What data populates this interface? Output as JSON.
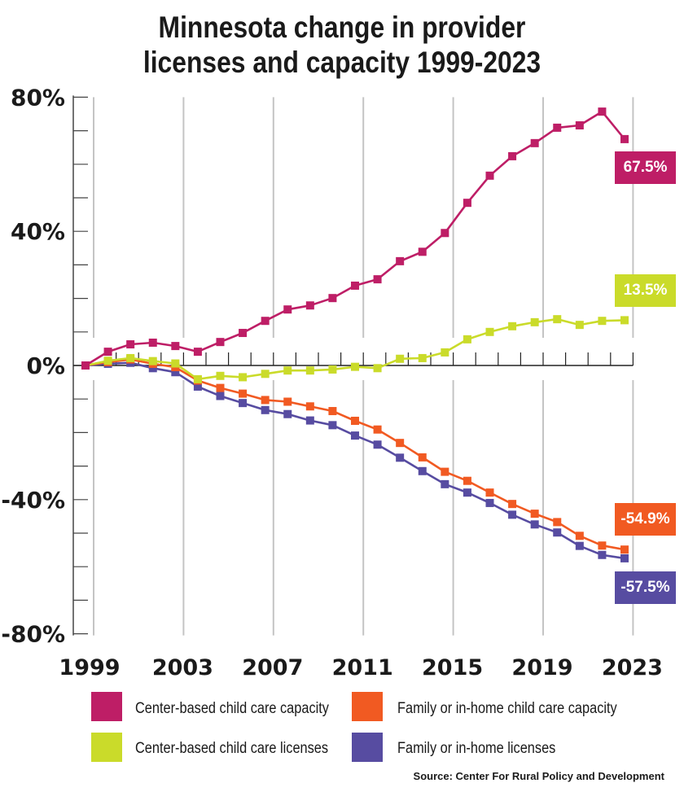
{
  "chart_data": {
    "type": "line",
    "title": "Minnesota change in provider licenses and capacity 1999-2023",
    "title_lines": [
      "Minnesota change in provider",
      "licenses and capacity 1999-2023"
    ],
    "x": [
      1999,
      2000,
      2001,
      2002,
      2003,
      2004,
      2005,
      2006,
      2007,
      2008,
      2009,
      2010,
      2011,
      2012,
      2013,
      2014,
      2015,
      2016,
      2017,
      2018,
      2019,
      2020,
      2021,
      2022,
      2023
    ],
    "x_ticks": [
      "1999",
      "2003",
      "2007",
      "2011",
      "2015",
      "2019",
      "2023"
    ],
    "y_ticks": [
      "80%",
      "40%",
      "0%",
      "-40%",
      "-80%"
    ],
    "ylim": [
      -80,
      80
    ],
    "y_unit": "%",
    "grid": "vertical",
    "legend_position": "bottom",
    "series": [
      {
        "name": "Center-based child care capacity",
        "color": "#BE1E66",
        "end_label": "67.5%",
        "values": [
          0,
          4.1,
          6.3,
          6.8,
          5.8,
          4.1,
          7.0,
          9.7,
          13.3,
          16.7,
          17.9,
          20.1,
          23.8,
          25.7,
          31.1,
          33.9,
          39.5,
          48.5,
          56.6,
          62.4,
          66.3,
          70.9,
          71.6,
          75.7,
          67.5
        ]
      },
      {
        "name": "Center-based child care licenses",
        "color": "#CADB2A",
        "end_label": "13.5%",
        "values": [
          0,
          1.4,
          2.2,
          1.3,
          0.6,
          -4.1,
          -3.1,
          -3.5,
          -2.5,
          -1.5,
          -1.5,
          -1.2,
          -0.4,
          -0.8,
          2.0,
          2.2,
          3.9,
          7.8,
          10.0,
          11.7,
          12.9,
          13.8,
          12.1,
          13.3,
          13.5
        ]
      },
      {
        "name": "Family or in-home child care capacity",
        "color": "#F15A22",
        "end_label": "-54.9%",
        "values": [
          0,
          1.0,
          1.8,
          0.5,
          -0.5,
          -4.5,
          -6.7,
          -8.4,
          -10.3,
          -10.8,
          -12.2,
          -13.6,
          -16.5,
          -19.1,
          -23.1,
          -27.4,
          -31.7,
          -34.4,
          -37.9,
          -41.3,
          -44.2,
          -46.7,
          -50.8,
          -53.7,
          -54.9
        ]
      },
      {
        "name": "Family or in-home licenses",
        "color": "#574CA1",
        "end_label": "-57.5%",
        "values": [
          0,
          0.5,
          0.8,
          -0.8,
          -2.0,
          -6.3,
          -9.1,
          -11.2,
          -13.3,
          -14.5,
          -16.4,
          -17.8,
          -20.9,
          -23.6,
          -27.5,
          -31.5,
          -35.4,
          -37.9,
          -41.0,
          -44.5,
          -47.4,
          -49.8,
          -53.8,
          -56.5,
          -57.5
        ]
      }
    ],
    "source": "Source: Center For Rural Policy and Development"
  }
}
